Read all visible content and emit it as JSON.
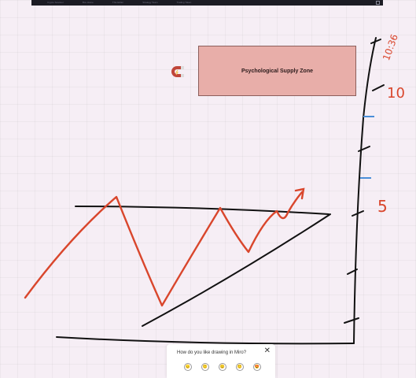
{
  "topbar": {
    "items": [
      "Crypto Scanner",
      "Box Home",
      "This Editor",
      "Strategy Team",
      "Trading Token"
    ]
  },
  "board": {
    "zone_label": "Psychological Supply Zone",
    "time_label": "10:36",
    "level_top": "10",
    "level_mid": "5",
    "colors": {
      "zone_fill": "#e8aea9",
      "price_line": "#d9462c",
      "ink": "#111111",
      "marker_blue": "#4a8ed8",
      "background": "#f6eef5"
    }
  },
  "magnet": {
    "icon": "magnet-icon"
  },
  "feedback": {
    "question": "How do you like drawing in Miro?",
    "close": "✕",
    "ratings": [
      "😞",
      "🙁",
      "😐",
      "🙂",
      "😍"
    ]
  }
}
